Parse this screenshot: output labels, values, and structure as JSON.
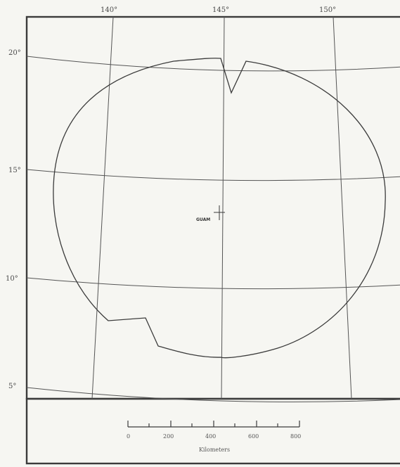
{
  "map": {
    "longitude_labels": [
      "140°",
      "145°",
      "150°"
    ],
    "latitude_labels": [
      "20°",
      "15°",
      "10°",
      "5°"
    ],
    "place_label": "GUAM",
    "scale_bar": {
      "unit_label": "Kilometers",
      "tick_labels": [
        "0",
        "200",
        "400",
        "600",
        "800"
      ]
    }
  },
  "colors": {
    "paper": "#f6f6f2",
    "ink": "#3a3a3a"
  },
  "icons": {
    "guam_marker": "crosshair-icon"
  }
}
